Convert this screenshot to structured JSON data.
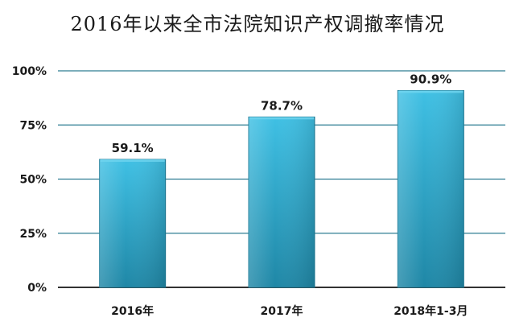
{
  "chart_data": {
    "type": "bar",
    "title": "2016年以来全市法院知识产权调撤率情况",
    "categories": [
      "2016年",
      "2017年",
      "2018年1-3月"
    ],
    "values": [
      59.1,
      78.7,
      90.9
    ],
    "data_labels": [
      "59.1%",
      "78.7%",
      "90.9%"
    ],
    "xlabel": "",
    "ylabel": "",
    "ylim": [
      0,
      100
    ],
    "yticks": [
      0,
      25,
      50,
      75,
      100
    ],
    "ytick_labels": [
      "0%",
      "25%",
      "50%",
      "75%",
      "100%"
    ],
    "grid": true,
    "legend": "none",
    "colors": {
      "bar_top": "#3fc0e4",
      "bar_bottom": "#1f87a6",
      "bar_edge": "#1b7a96",
      "gridline": "#2e7d92",
      "axis": "#333333"
    }
  }
}
